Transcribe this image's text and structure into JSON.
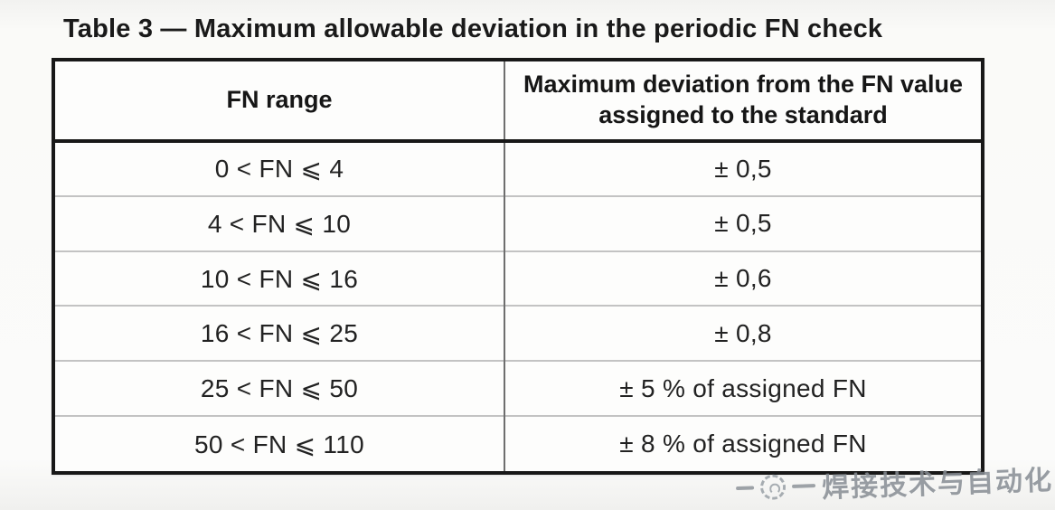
{
  "page": {
    "title": "Table 3 — Maximum allowable deviation in the periodic FN check"
  },
  "table": {
    "col_headers": [
      "FN range",
      "Maximum deviation from the FN value assigned to the standard"
    ],
    "rows": [
      {
        "fn_range": "0 < FN ⩽ 4",
        "max_deviation": "± 0,5"
      },
      {
        "fn_range": "4 < FN ⩽ 10",
        "max_deviation": "± 0,5"
      },
      {
        "fn_range": "10 < FN ⩽ 16",
        "max_deviation": "± 0,6"
      },
      {
        "fn_range": "16 < FN ⩽ 25",
        "max_deviation": "± 0,8"
      },
      {
        "fn_range": "25 < FN ⩽ 50",
        "max_deviation": "± 5 % of assigned FN"
      },
      {
        "fn_range": "50 < FN ⩽ 110",
        "max_deviation": "± 8 % of assigned FN"
      }
    ]
  },
  "watermark": {
    "icon": "sketch-circle-logo",
    "text": "焊接技术与自动化",
    "color": "#878d94"
  }
}
